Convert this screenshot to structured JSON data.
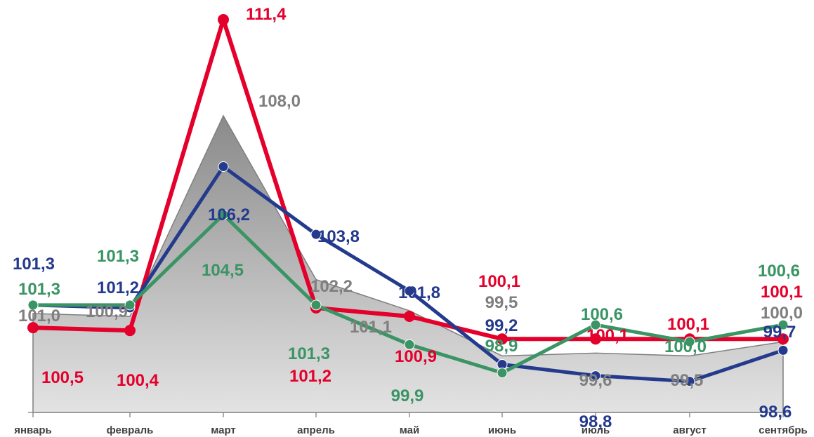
{
  "chart_data": {
    "type": "line",
    "categories": [
      "январь",
      "февраль",
      "март",
      "апрель",
      "май",
      "июнь",
      "июль",
      "август",
      "сентябрь"
    ],
    "y_range": [
      97.5,
      111.4
    ],
    "grid": false,
    "series": [
      {
        "style": "area",
        "color": "#7f7f7f",
        "fill_top": "#8a8a8a",
        "fill_bottom": "#e3e3e3",
        "values": [
          101.0,
          100.9,
          108.0,
          102.2,
          101.1,
          99.5,
          99.6,
          99.5,
          100.0
        ],
        "labels": [
          "101,0",
          "100,9",
          "108,0",
          "102,2",
          "101,1",
          "99,5",
          "99,6",
          "99,5",
          "100,0"
        ]
      },
      {
        "style": "line",
        "color": "#e4002b",
        "values": [
          100.5,
          100.4,
          111.4,
          101.2,
          100.9,
          100.1,
          100.1,
          100.1,
          100.1
        ],
        "labels": [
          "100,5",
          "100,4",
          "111,4",
          "101,2",
          "100,9",
          "100,1",
          "100,1",
          "100,1",
          "100,1"
        ]
      },
      {
        "style": "line",
        "color": "#243a8c",
        "values": [
          101.3,
          101.2,
          106.2,
          103.8,
          101.8,
          99.2,
          98.8,
          98.6,
          99.7
        ],
        "labels": [
          "101,3",
          "101,2",
          "106,2",
          "103,8",
          "101,8",
          "99,2",
          "98,8",
          "98,6",
          "99,7"
        ]
      },
      {
        "style": "line",
        "color": "#3a9464",
        "values": [
          101.3,
          101.3,
          104.5,
          101.3,
          99.9,
          98.9,
          100.6,
          100.0,
          100.6
        ],
        "labels": [
          "101,3",
          "101,3",
          "104,5",
          "101,3",
          "99,9",
          "98,9",
          "100,6",
          "100,0",
          "100,6"
        ]
      }
    ]
  }
}
